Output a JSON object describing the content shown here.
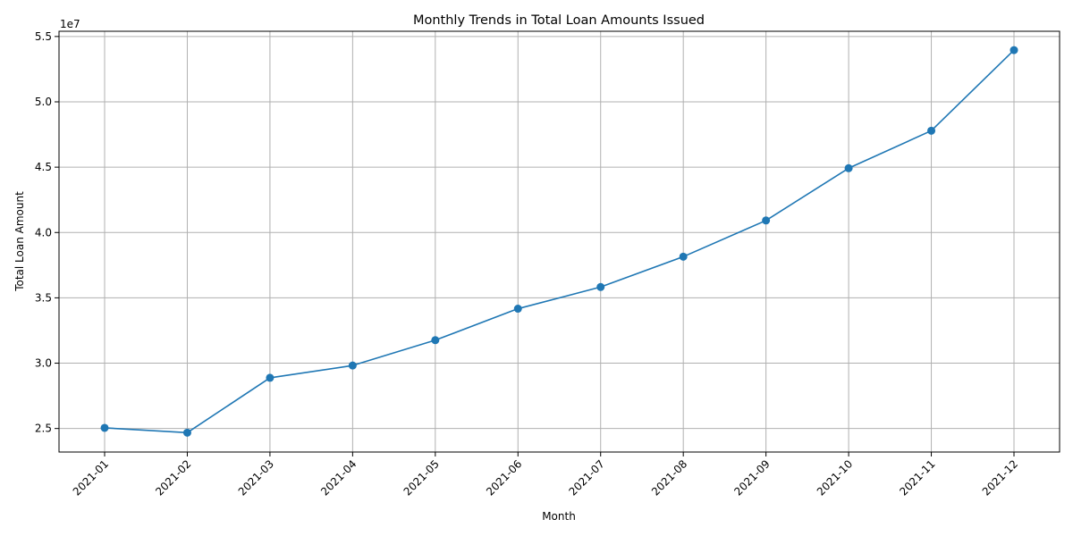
{
  "chart_data": {
    "type": "line",
    "title": "Monthly Trends in Total Loan Amounts Issued",
    "xlabel": "Month",
    "ylabel": "Total Loan Amount",
    "y_offset_text": "1e7",
    "categories": [
      "2021-01",
      "2021-02",
      "2021-03",
      "2021-04",
      "2021-05",
      "2021-06",
      "2021-07",
      "2021-08",
      "2021-09",
      "2021-10",
      "2021-11",
      "2021-12"
    ],
    "series": [
      {
        "values": [
          25050000,
          24680000,
          28880000,
          29820000,
          31760000,
          34170000,
          35830000,
          38150000,
          40920000,
          44920000,
          47790000,
          53960000
        ],
        "color": "#1f77b4",
        "marker": "circle"
      }
    ],
    "yticks": [
      25000000,
      30000000,
      35000000,
      40000000,
      45000000,
      50000000,
      55000000
    ],
    "ytick_labels": [
      "2.5",
      "3.0",
      "3.5",
      "4.0",
      "4.5",
      "5.0",
      "5.5"
    ],
    "ylim": [
      23200000,
      55400000
    ],
    "grid": true,
    "grid_color": "#b0b0b0",
    "legend": "none"
  }
}
